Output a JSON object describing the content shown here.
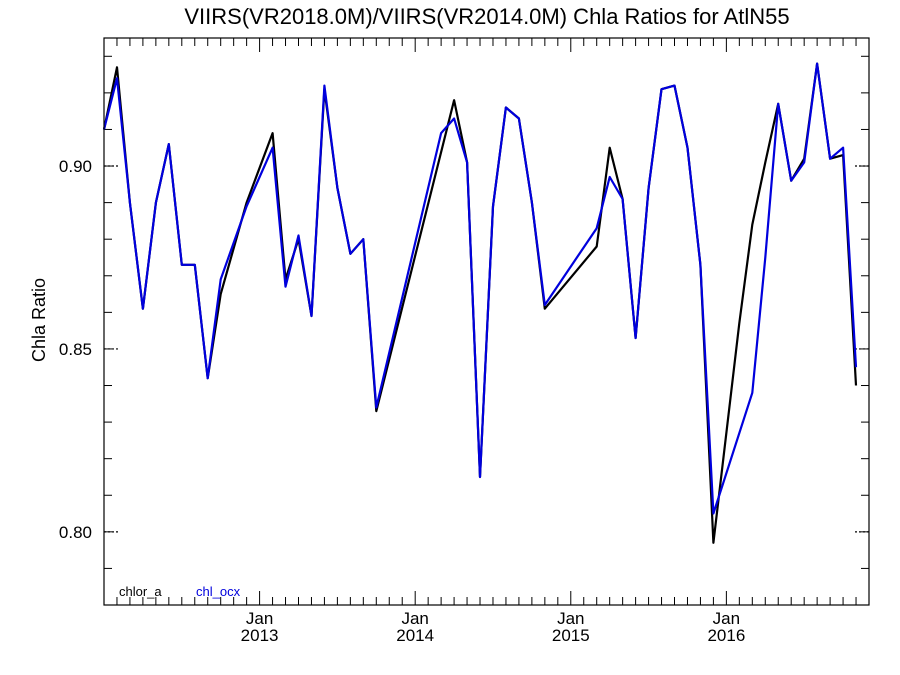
{
  "chart_data": {
    "type": "line",
    "title": "VIIRS(VR2018.0M)/VIIRS(VR2014.0M)  Chla Ratios for AtlN55",
    "xlabel": "",
    "ylabel": "Chla Ratio",
    "xlim": [
      "2012-01-01",
      "2016-12-01"
    ],
    "ylim": [
      0.78,
      0.935
    ],
    "yticks": [
      0.8,
      0.85,
      0.9
    ],
    "ytick_labels": [
      "0.80",
      "0.85",
      "0.90"
    ],
    "xticks": [
      {
        "date": "2013-01-01",
        "month": "Jan",
        "year": "2013"
      },
      {
        "date": "2014-01-01",
        "month": "Jan",
        "year": "2014"
      },
      {
        "date": "2015-01-01",
        "month": "Jan",
        "year": "2015"
      },
      {
        "date": "2016-01-01",
        "month": "Jan",
        "year": "2016"
      }
    ],
    "legend_placement": "bottom-left",
    "series": [
      {
        "name": "chlor_a",
        "color": "#000000",
        "points": [
          [
            "2012-01-01",
            0.91
          ],
          [
            "2012-02-01",
            0.927
          ],
          [
            "2012-03-01",
            0.89
          ],
          [
            "2012-04-01",
            0.861
          ],
          [
            "2012-05-01",
            0.89
          ],
          [
            "2012-06-01",
            0.906
          ],
          [
            "2012-07-01",
            0.873
          ],
          [
            "2012-08-01",
            0.873
          ],
          [
            "2012-09-01",
            0.842
          ],
          [
            "2012-10-01",
            0.865
          ],
          [
            "2012-12-01",
            0.89
          ],
          [
            "2013-02-01",
            0.909
          ],
          [
            "2013-03-01",
            0.869
          ],
          [
            "2013-04-01",
            0.88
          ],
          [
            "2013-05-01",
            0.859
          ],
          [
            "2013-06-01",
            0.921
          ],
          [
            "2013-07-01",
            0.894
          ],
          [
            "2013-08-01",
            0.876
          ],
          [
            "2013-09-01",
            0.88
          ],
          [
            "2013-10-01",
            0.833
          ],
          [
            "2014-04-01",
            0.918
          ],
          [
            "2014-05-01",
            0.901
          ],
          [
            "2014-06-01",
            0.815
          ],
          [
            "2014-07-01",
            0.889
          ],
          [
            "2014-08-01",
            0.916
          ],
          [
            "2014-09-01",
            0.913
          ],
          [
            "2014-10-01",
            0.89
          ],
          [
            "2014-11-01",
            0.861
          ],
          [
            "2015-03-01",
            0.878
          ],
          [
            "2015-04-01",
            0.905
          ],
          [
            "2015-05-01",
            0.891
          ],
          [
            "2015-06-01",
            0.853
          ],
          [
            "2015-07-01",
            0.894
          ],
          [
            "2015-08-01",
            0.921
          ],
          [
            "2015-09-01",
            0.922
          ],
          [
            "2015-10-01",
            0.905
          ],
          [
            "2015-11-01",
            0.873
          ],
          [
            "2015-12-01",
            0.797
          ],
          [
            "2016-02-01",
            0.857
          ],
          [
            "2016-03-01",
            0.884
          ],
          [
            "2016-04-01",
            0.901
          ],
          [
            "2016-05-01",
            0.917
          ],
          [
            "2016-06-01",
            0.896
          ],
          [
            "2016-07-01",
            0.902
          ],
          [
            "2016-08-01",
            0.928
          ],
          [
            "2016-09-01",
            0.902
          ],
          [
            "2016-10-01",
            0.903
          ],
          [
            "2016-11-01",
            0.84
          ]
        ]
      },
      {
        "name": "chl_ocx",
        "color": "#0000dd",
        "points": [
          [
            "2012-01-01",
            0.91
          ],
          [
            "2012-02-01",
            0.924
          ],
          [
            "2012-03-01",
            0.89
          ],
          [
            "2012-04-01",
            0.861
          ],
          [
            "2012-05-01",
            0.89
          ],
          [
            "2012-06-01",
            0.906
          ],
          [
            "2012-07-01",
            0.873
          ],
          [
            "2012-08-01",
            0.873
          ],
          [
            "2012-09-01",
            0.842
          ],
          [
            "2012-10-01",
            0.869
          ],
          [
            "2012-12-01",
            0.889
          ],
          [
            "2013-02-01",
            0.905
          ],
          [
            "2013-03-01",
            0.867
          ],
          [
            "2013-04-01",
            0.881
          ],
          [
            "2013-05-01",
            0.859
          ],
          [
            "2013-06-01",
            0.922
          ],
          [
            "2013-07-01",
            0.894
          ],
          [
            "2013-08-01",
            0.876
          ],
          [
            "2013-09-01",
            0.88
          ],
          [
            "2013-10-01",
            0.834
          ],
          [
            "2014-03-01",
            0.909
          ],
          [
            "2014-04-01",
            0.913
          ],
          [
            "2014-05-01",
            0.901
          ],
          [
            "2014-06-01",
            0.815
          ],
          [
            "2014-07-01",
            0.889
          ],
          [
            "2014-08-01",
            0.916
          ],
          [
            "2014-09-01",
            0.913
          ],
          [
            "2014-10-01",
            0.89
          ],
          [
            "2014-11-01",
            0.862
          ],
          [
            "2015-03-01",
            0.883
          ],
          [
            "2015-04-01",
            0.897
          ],
          [
            "2015-05-01",
            0.891
          ],
          [
            "2015-06-01",
            0.853
          ],
          [
            "2015-07-01",
            0.894
          ],
          [
            "2015-08-01",
            0.921
          ],
          [
            "2015-09-01",
            0.922
          ],
          [
            "2015-10-01",
            0.905
          ],
          [
            "2015-11-01",
            0.873
          ],
          [
            "2015-12-01",
            0.805
          ],
          [
            "2016-03-01",
            0.838
          ],
          [
            "2016-04-01",
            0.875
          ],
          [
            "2016-05-01",
            0.917
          ],
          [
            "2016-06-01",
            0.896
          ],
          [
            "2016-07-01",
            0.901
          ],
          [
            "2016-08-01",
            0.928
          ],
          [
            "2016-09-01",
            0.902
          ],
          [
            "2016-10-01",
            0.905
          ],
          [
            "2016-11-01",
            0.845
          ]
        ]
      }
    ]
  }
}
